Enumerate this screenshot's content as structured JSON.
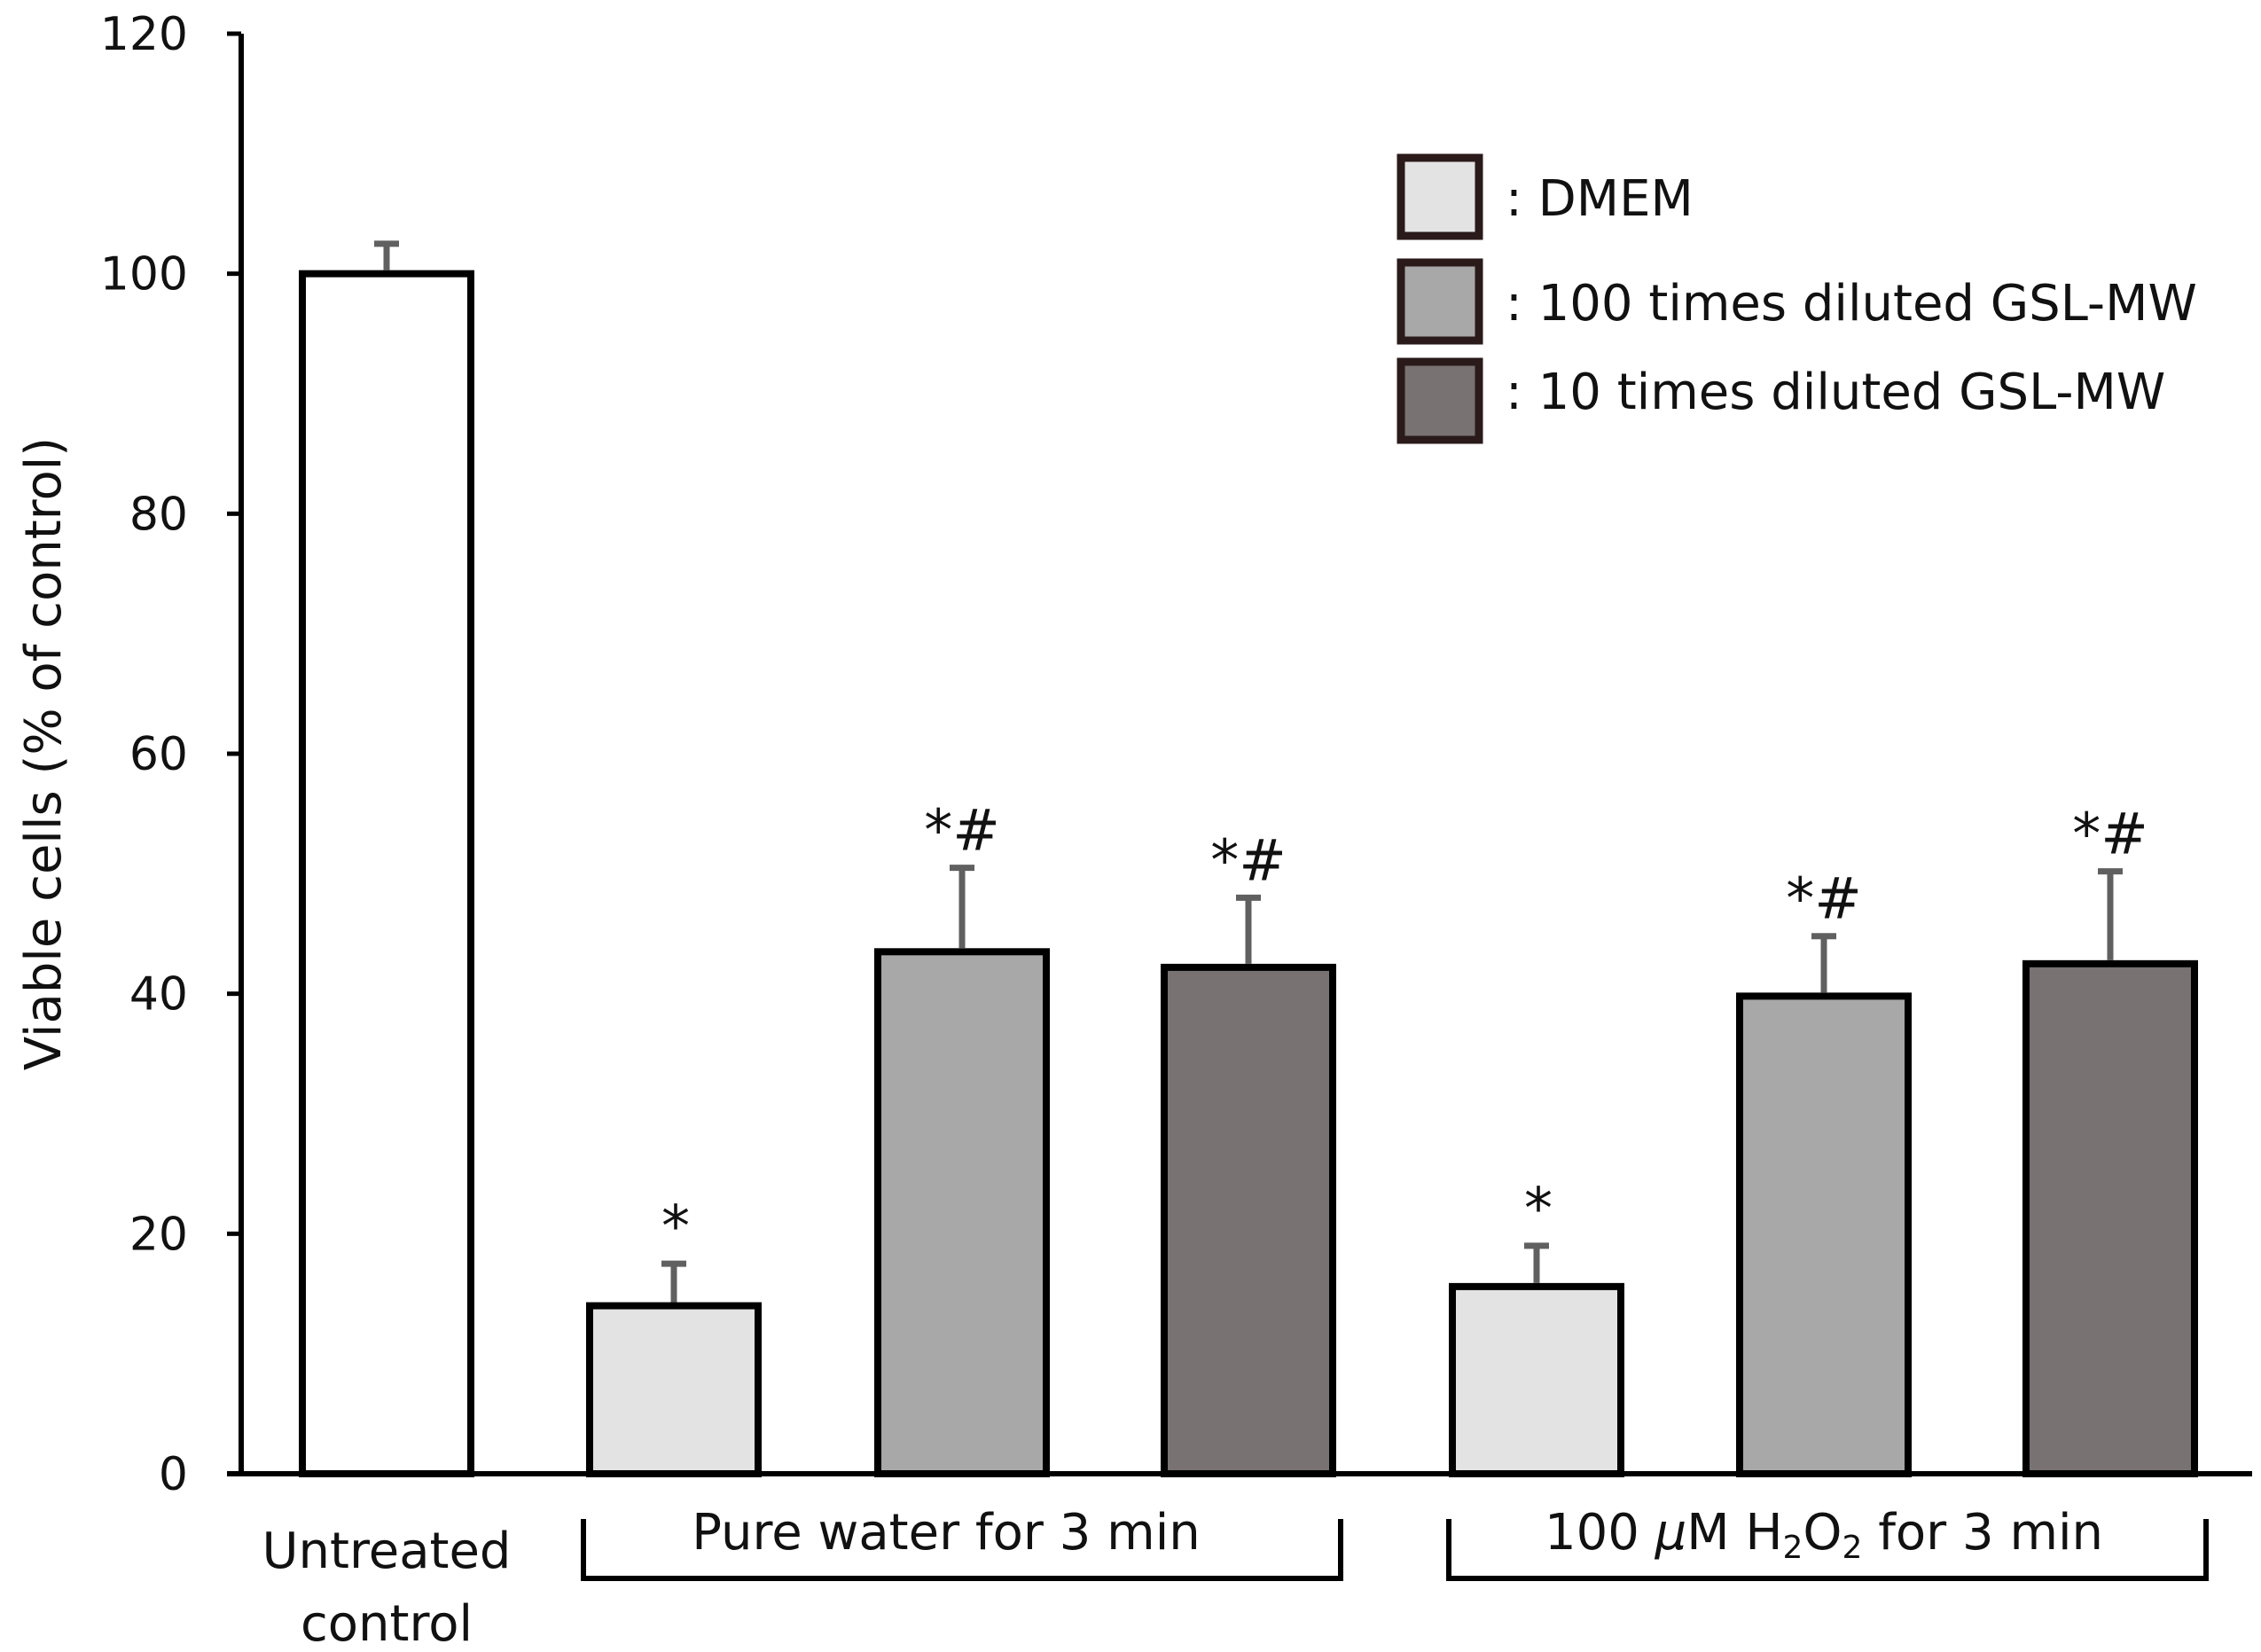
{
  "chart_data": {
    "type": "bar",
    "title": "",
    "xlabel": "",
    "ylabel": "Viable cells (% of control)",
    "ylim": [
      0,
      120
    ],
    "yticks": [
      0,
      20,
      40,
      60,
      80,
      100,
      120
    ],
    "grid": false,
    "legend_position": "top-right",
    "series": [
      {
        "name": ": DMEM",
        "color": "#e3e3e3"
      },
      {
        "name": ": 100 times diluted GSL-MW",
        "color": "#a8a8a8"
      },
      {
        "name": ": 10 times diluted GSL-MW",
        "color": "#787272"
      }
    ],
    "bars": [
      {
        "label": "Untreated control",
        "series": null,
        "color": "#ffffff",
        "value": 100,
        "error": 2.5,
        "annotation": ""
      },
      {
        "label": "Pure water for 3 min",
        "series": ": DMEM",
        "color": "#e3e3e3",
        "value": 14,
        "error": 3.5,
        "annotation": "*"
      },
      {
        "label": "Pure water for 3 min",
        "series": ": 100 times diluted GSL-MW",
        "color": "#a8a8a8",
        "value": 43.5,
        "error": 7,
        "annotation": "*#"
      },
      {
        "label": "Pure water for 3 min",
        "series": ": 10 times diluted GSL-MW",
        "color": "#787272",
        "value": 42.2,
        "error": 5.8,
        "annotation": "*#"
      },
      {
        "label": "100 μM H2O2 for 3 min",
        "series": ": DMEM",
        "color": "#e3e3e3",
        "value": 15.6,
        "error": 3.4,
        "annotation": "*"
      },
      {
        "label": "100 μM H2O2 for 3 min",
        "series": ": 100 times diluted GSL-MW",
        "color": "#a8a8a8",
        "value": 39.8,
        "error": 5,
        "annotation": "*#"
      },
      {
        "label": "100 μM H2O2 for 3 min",
        "series": ": 10 times diluted GSL-MW",
        "color": "#787272",
        "value": 42.5,
        "error": 7.7,
        "annotation": "*#"
      }
    ],
    "category_labels": {
      "control_line1": "Untreated",
      "control_line2": "control",
      "group1": "Pure water for 3 min",
      "group2_pre": "100 ",
      "group2_mu": "μ",
      "group2_M": "M H",
      "group2_sub1": "2",
      "group2_O": "O",
      "group2_sub2": "2",
      "group2_post": " for 3 min"
    }
  }
}
